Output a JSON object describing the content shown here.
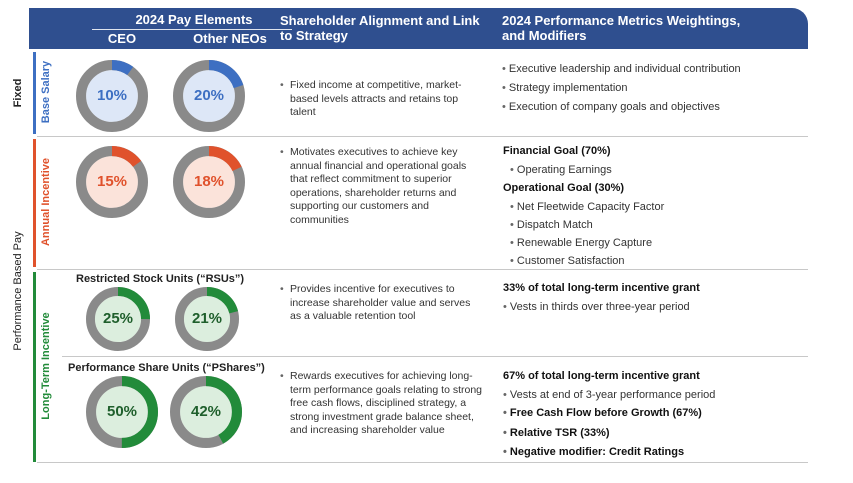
{
  "header": {
    "pay_elements": "2024 Pay Elements",
    "ceo": "CEO",
    "other_neos": "Other NEOs",
    "alignment": "Shareholder Alignment and Link to Strategy",
    "performance": "2024 Performance Metrics Weightings, and Modifiers"
  },
  "groups": {
    "fixed": "Fixed",
    "performance_based": "Performance Based Pay"
  },
  "colors": {
    "header_bg": "#2f4f8f",
    "base_salary": "#3d6fc2",
    "annual_incentive": "#e0522c",
    "long_term": "#228b3a",
    "ring_gray": "#8a8a8a"
  },
  "rows": {
    "base_salary": {
      "label": "Base Salary",
      "ceo_pct": "10%",
      "neo_pct": "20%",
      "ceo_value": 10,
      "neo_value": 20,
      "alignment": "Fixed income at competitive, market-based levels attracts and retains top talent",
      "metrics": [
        "Executive leadership and individual contribution",
        "Strategy implementation",
        "Execution of company goals and objectives"
      ]
    },
    "annual_incentive": {
      "label": "Annual Incentive",
      "ceo_pct": "15%",
      "neo_pct": "18%",
      "ceo_value": 15,
      "neo_value": 18,
      "alignment": "Motivates executives to achieve key annual financial and operational goals that reflect commitment to superior operations, shareholder returns and supporting our customers and communities",
      "financial_goal": "Financial Goal (70%)",
      "financial_items": [
        "Operating Earnings"
      ],
      "operational_goal": "Operational Goal (30%)",
      "operational_items": [
        "Net Fleetwide Capacity Factor",
        "Dispatch Match",
        "Renewable Energy Capture",
        "Customer Satisfaction"
      ]
    },
    "long_term": {
      "label": "Long-Term Incentive",
      "rsu": {
        "title": "Restricted Stock Units (“RSUs”)",
        "ceo_pct": "25%",
        "neo_pct": "21%",
        "ceo_value": 25,
        "neo_value": 21,
        "alignment": "Provides incentive for executives to increase shareholder value and serves as a valuable retention tool",
        "heading": "33% of total long-term incentive grant",
        "items": [
          "Vests in thirds over three-year period"
        ]
      },
      "pshares": {
        "title": "Performance Share Units (“PShares”)",
        "ceo_pct": "50%",
        "neo_pct": "42%",
        "ceo_value": 50,
        "neo_value": 42,
        "alignment": "Rewards executives for achieving long-term performance goals relating to strong free cash flows, disciplined strategy, a strong investment grade balance sheet, and increasing shareholder value",
        "heading": "67% of total long-term incentive grant",
        "items_plain": [
          "Vests at end of 3-year performance period"
        ],
        "items_bold": [
          "Free Cash Flow before Growth (67%)",
          "Relative TSR (33%)",
          "Negative modifier: Credit Ratings"
        ]
      }
    }
  },
  "bullet_char": "•"
}
